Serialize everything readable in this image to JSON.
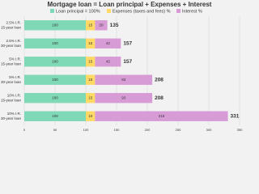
{
  "chart_data": {
    "type": "stacked-bar-horizontal",
    "title": "Mortgage loan = Loan principal + Expenses + Interest",
    "categories": [
      [
        "2.5% I.R.",
        "15-year loan"
      ],
      [
        "2.5% I.R.",
        "30-year loan"
      ],
      [
        "5% I.R.",
        "15-year loan"
      ],
      [
        "5% I.R.",
        "30-year loan"
      ],
      [
        "10% I.R.",
        "15-year loan"
      ],
      [
        "10% I.R.",
        "30-year loan"
      ]
    ],
    "series": [
      {
        "name": "Loan principal = 100%",
        "color": "#7fd8b6",
        "values": [
          100,
          100,
          100,
          100,
          100,
          100
        ]
      },
      {
        "name": "Expenses (taxes and fees) %",
        "color": "#ffd966",
        "values": [
          15,
          15,
          15,
          15,
          15,
          15
        ]
      },
      {
        "name": "Interest %",
        "color": "#d79bd6",
        "values": [
          20,
          42,
          42,
          93,
          93,
          216
        ]
      }
    ],
    "totals": [
      135,
      157,
      157,
      208,
      208,
      331
    ],
    "xlim": [
      0,
      350
    ],
    "xticks": [
      0,
      50,
      100,
      150,
      200,
      250,
      300,
      350
    ],
    "grid": true
  }
}
